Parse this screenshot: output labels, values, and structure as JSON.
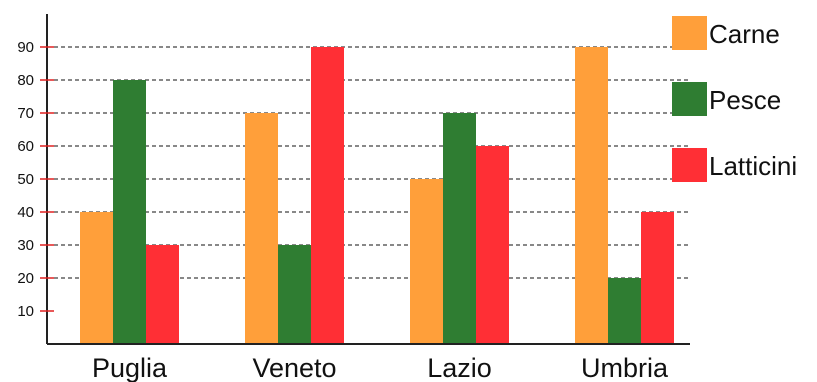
{
  "chart_data": {
    "type": "bar",
    "title": "",
    "xlabel": "",
    "ylabel": "",
    "categories": [
      "Puglia",
      "Veneto",
      "Lazio",
      "Umbria"
    ],
    "series": [
      {
        "name": "Carne",
        "values": [
          40,
          70,
          50,
          90
        ],
        "color": "#ff9f3a"
      },
      {
        "name": "Pesce",
        "values": [
          80,
          30,
          70,
          20
        ],
        "color": "#2f7d32"
      },
      {
        "name": "Latticini",
        "values": [
          30,
          90,
          60,
          40
        ],
        "color": "#ff2f35"
      }
    ],
    "ylim": [
      0,
      100
    ],
    "yticks": [
      "10",
      "20",
      "30",
      "40",
      "50",
      "60",
      "70",
      "80",
      "90"
    ],
    "grid_lines": [
      20,
      30,
      40,
      50,
      60,
      70,
      80,
      90
    ],
    "grid": "dashed",
    "legend": "right",
    "axis_color": "#222222",
    "tick_color": "#e02020"
  }
}
